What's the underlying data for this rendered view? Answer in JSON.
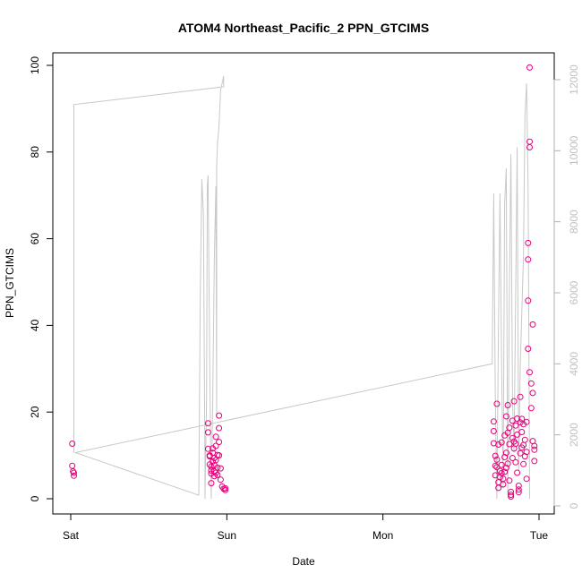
{
  "chart_data": {
    "type": "scatter",
    "title": "ATOM4 Northeast_Pacific_2 PPN_GTCIMS",
    "xlabel": "Date",
    "ylabel": "PPN_GTCIMS",
    "x_ticks": [
      "Sat",
      "Sun",
      "Mon",
      "Tue"
    ],
    "ylim": [
      0,
      100
    ],
    "y_ticks": [
      "0",
      "20",
      "40",
      "60",
      "80",
      "100"
    ],
    "y2lim": [
      0,
      12000
    ],
    "y2_ticks": [
      "0",
      "2000",
      "4000",
      "6000",
      "8000",
      "10000",
      "12000"
    ],
    "grid": false,
    "x_unit": "days from Sat 00:00",
    "series": [
      {
        "type": "line",
        "axis": "right",
        "color": "#c8c8c8",
        "points": [
          [
            0.02,
            1500
          ],
          [
            0.02,
            11300
          ],
          [
            0.98,
            11800
          ],
          [
            0.98,
            12100
          ],
          [
            0.96,
            11700
          ],
          [
            0.95,
            10700
          ],
          [
            0.94,
            10200
          ],
          [
            0.935,
            9600
          ],
          [
            0.935,
            2500
          ],
          [
            0.93,
            9000
          ],
          [
            0.92,
            7000
          ],
          [
            0.91,
            3000
          ],
          [
            0.9,
            200
          ],
          [
            0.89,
            4100
          ],
          [
            0.88,
            9300
          ],
          [
            0.875,
            9000
          ],
          [
            0.87,
            3000
          ],
          [
            0.86,
            200
          ],
          [
            0.86,
            1200
          ],
          [
            0.85,
            8200
          ],
          [
            0.84,
            9200
          ],
          [
            0.83,
            6000
          ],
          [
            0.82,
            300
          ],
          [
            0.03,
            1500
          ],
          [
            2.7,
            4000
          ],
          [
            2.71,
            8800
          ],
          [
            2.72,
            3000
          ],
          [
            2.73,
            200
          ],
          [
            2.74,
            5000
          ],
          [
            2.75,
            8800
          ],
          [
            2.76,
            4000
          ],
          [
            2.77,
            500
          ],
          [
            2.78,
            8500
          ],
          [
            2.79,
            9500
          ],
          [
            2.8,
            300
          ],
          [
            2.81,
            6000
          ],
          [
            2.82,
            9900
          ],
          [
            2.83,
            3000
          ],
          [
            2.84,
            1500
          ],
          [
            2.86,
            10100
          ],
          [
            2.87,
            1000
          ],
          [
            2.88,
            4000
          ],
          [
            2.9,
            7000
          ],
          [
            2.91,
            11000
          ],
          [
            2.92,
            11900
          ],
          [
            2.93,
            9000
          ],
          [
            2.94,
            200
          ]
        ]
      },
      {
        "type": "scatter",
        "axis": "left",
        "color": "#e8007a",
        "points": [
          [
            0.01,
            12.7
          ],
          [
            0.01,
            7.6
          ],
          [
            0.015,
            6.3
          ],
          [
            0.02,
            5.3
          ],
          [
            0.02,
            6.0
          ],
          [
            0.88,
            17.4
          ],
          [
            0.88,
            15.3
          ],
          [
            0.88,
            11.5
          ],
          [
            0.89,
            10.0
          ],
          [
            0.89,
            9.8
          ],
          [
            0.89,
            7.9
          ],
          [
            0.9,
            7.4
          ],
          [
            0.9,
            6.5
          ],
          [
            0.9,
            5.8
          ],
          [
            0.9,
            3.6
          ],
          [
            0.91,
            11.6
          ],
          [
            0.91,
            10.6
          ],
          [
            0.91,
            8.6
          ],
          [
            0.92,
            9.4
          ],
          [
            0.92,
            7.7
          ],
          [
            0.92,
            6.3
          ],
          [
            0.92,
            5.2
          ],
          [
            0.93,
            14.3
          ],
          [
            0.93,
            12.2
          ],
          [
            0.93,
            8.9
          ],
          [
            0.93,
            6.0
          ],
          [
            0.94,
            10.1
          ],
          [
            0.94,
            7.2
          ],
          [
            0.94,
            5.5
          ],
          [
            0.95,
            19.2
          ],
          [
            0.95,
            16.3
          ],
          [
            0.95,
            13.1
          ],
          [
            0.95,
            10.0
          ],
          [
            0.96,
            7.0
          ],
          [
            0.96,
            4.4
          ],
          [
            0.97,
            2.8
          ],
          [
            0.98,
            2.3
          ],
          [
            0.99,
            2.0
          ],
          [
            0.99,
            2.4
          ],
          [
            2.71,
            17.8
          ],
          [
            2.71,
            15.6
          ],
          [
            2.71,
            12.8
          ],
          [
            2.72,
            9.9
          ],
          [
            2.72,
            7.6
          ],
          [
            2.72,
            5.4
          ],
          [
            2.73,
            21.9
          ],
          [
            2.73,
            9.0
          ],
          [
            2.73,
            7.3
          ],
          [
            2.74,
            12.5
          ],
          [
            2.74,
            3.8
          ],
          [
            2.74,
            2.5
          ],
          [
            2.75,
            6.4
          ],
          [
            2.75,
            5.0
          ],
          [
            2.76,
            13.0
          ],
          [
            2.76,
            7.8
          ],
          [
            2.76,
            5.9
          ],
          [
            2.77,
            4.6
          ],
          [
            2.77,
            3.3
          ],
          [
            2.78,
            14.6
          ],
          [
            2.78,
            9.6
          ],
          [
            2.78,
            6.2
          ],
          [
            2.79,
            19.0
          ],
          [
            2.79,
            10.6
          ],
          [
            2.79,
            7.1
          ],
          [
            2.8,
            21.6
          ],
          [
            2.8,
            15.2
          ],
          [
            2.8,
            8.1
          ],
          [
            2.81,
            16.4
          ],
          [
            2.81,
            12.6
          ],
          [
            2.81,
            4.2
          ],
          [
            2.82,
            1.6
          ],
          [
            2.82,
            0.9
          ],
          [
            2.82,
            0.5
          ],
          [
            2.83,
            18.0
          ],
          [
            2.83,
            14.0
          ],
          [
            2.83,
            9.4
          ],
          [
            2.84,
            22.5
          ],
          [
            2.84,
            13.2
          ],
          [
            2.84,
            11.6
          ],
          [
            2.85,
            16.9
          ],
          [
            2.85,
            12.7
          ],
          [
            2.85,
            8.4
          ],
          [
            2.86,
            18.5
          ],
          [
            2.86,
            14.8
          ],
          [
            2.86,
            6.0
          ],
          [
            2.87,
            3.0
          ],
          [
            2.87,
            2.1
          ],
          [
            2.87,
            1.5
          ],
          [
            2.88,
            23.5
          ],
          [
            2.88,
            17.6
          ],
          [
            2.88,
            10.5
          ],
          [
            2.89,
            18.4
          ],
          [
            2.89,
            15.4
          ],
          [
            2.89,
            11.8
          ],
          [
            2.9,
            17.2
          ],
          [
            2.9,
            12.4
          ],
          [
            2.9,
            8.0
          ],
          [
            2.91,
            13.6
          ],
          [
            2.91,
            9.8
          ],
          [
            2.92,
            17.7
          ],
          [
            2.92,
            10.8
          ],
          [
            2.92,
            4.6
          ],
          [
            2.93,
            59.0
          ],
          [
            2.93,
            55.2
          ],
          [
            2.93,
            45.7
          ],
          [
            2.93,
            34.6
          ],
          [
            2.94,
            99.5
          ],
          [
            2.94,
            82.4
          ],
          [
            2.94,
            81.1
          ],
          [
            2.94,
            29.2
          ],
          [
            2.95,
            26.6
          ],
          [
            2.95,
            20.9
          ],
          [
            2.96,
            40.2
          ],
          [
            2.96,
            24.4
          ],
          [
            2.96,
            13.3
          ],
          [
            2.97,
            12.2
          ],
          [
            2.97,
            11.3
          ],
          [
            2.97,
            8.7
          ]
        ]
      }
    ]
  }
}
